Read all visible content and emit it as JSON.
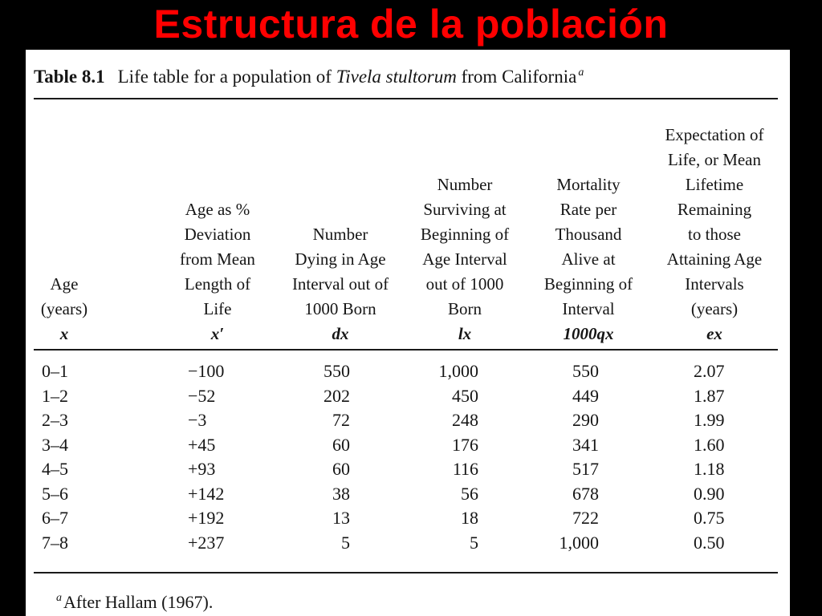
{
  "slide": {
    "title": "Estructura de la población"
  },
  "table": {
    "caption_number": "Table 8.1",
    "caption_text_before": "Life table for a population of ",
    "caption_species": "Tivela stultorum",
    "caption_text_after": " from California",
    "caption_note_marker": "a",
    "headers": [
      {
        "lines": [
          "Age",
          "(years)"
        ],
        "symbol": "x"
      },
      {
        "lines": [
          "Age as %",
          "Deviation",
          "from Mean",
          "Length of",
          "Life"
        ],
        "symbol": "x′"
      },
      {
        "lines": [
          "Number",
          "Dying in Age",
          "Interval out of",
          "1000 Born"
        ],
        "symbol": "dx"
      },
      {
        "lines": [
          "Number",
          "Surviving at",
          "Beginning of",
          "Age Interval",
          "out of 1000",
          "Born"
        ],
        "symbol": "lx"
      },
      {
        "lines": [
          "Mortality",
          "Rate per",
          "Thousand",
          "Alive at",
          "Beginning of",
          "Interval"
        ],
        "symbol": "1000qx"
      },
      {
        "lines": [
          "Expectation of",
          "Life, or Mean",
          "Lifetime",
          "Remaining",
          "to those",
          "Attaining Age",
          "Intervals",
          "(years)"
        ],
        "symbol": "ex"
      }
    ],
    "columns": {
      "age": [
        "0–1",
        "1–2",
        "2–3",
        "3–4",
        "4–5",
        "5–6",
        "6–7",
        "7–8"
      ],
      "age_deviation": [
        "−100",
        "−52",
        "−3",
        "+45",
        "+93",
        "+142",
        "+192",
        "+237"
      ],
      "dx": [
        "550",
        "202",
        "72",
        "60",
        "60",
        "38",
        "13",
        "5"
      ],
      "lx": [
        "1,000",
        "450",
        "248",
        "176",
        "116",
        "56",
        "18",
        "5"
      ],
      "qx": [
        "550",
        "449",
        "290",
        "341",
        "517",
        "678",
        "722",
        "1,000"
      ],
      "ex": [
        "2.07",
        "1.87",
        "1.99",
        "1.60",
        "1.18",
        "0.90",
        "0.75",
        "0.50"
      ]
    },
    "footnote_marker": "a",
    "footnote_text": "After Hallam (1967)."
  }
}
